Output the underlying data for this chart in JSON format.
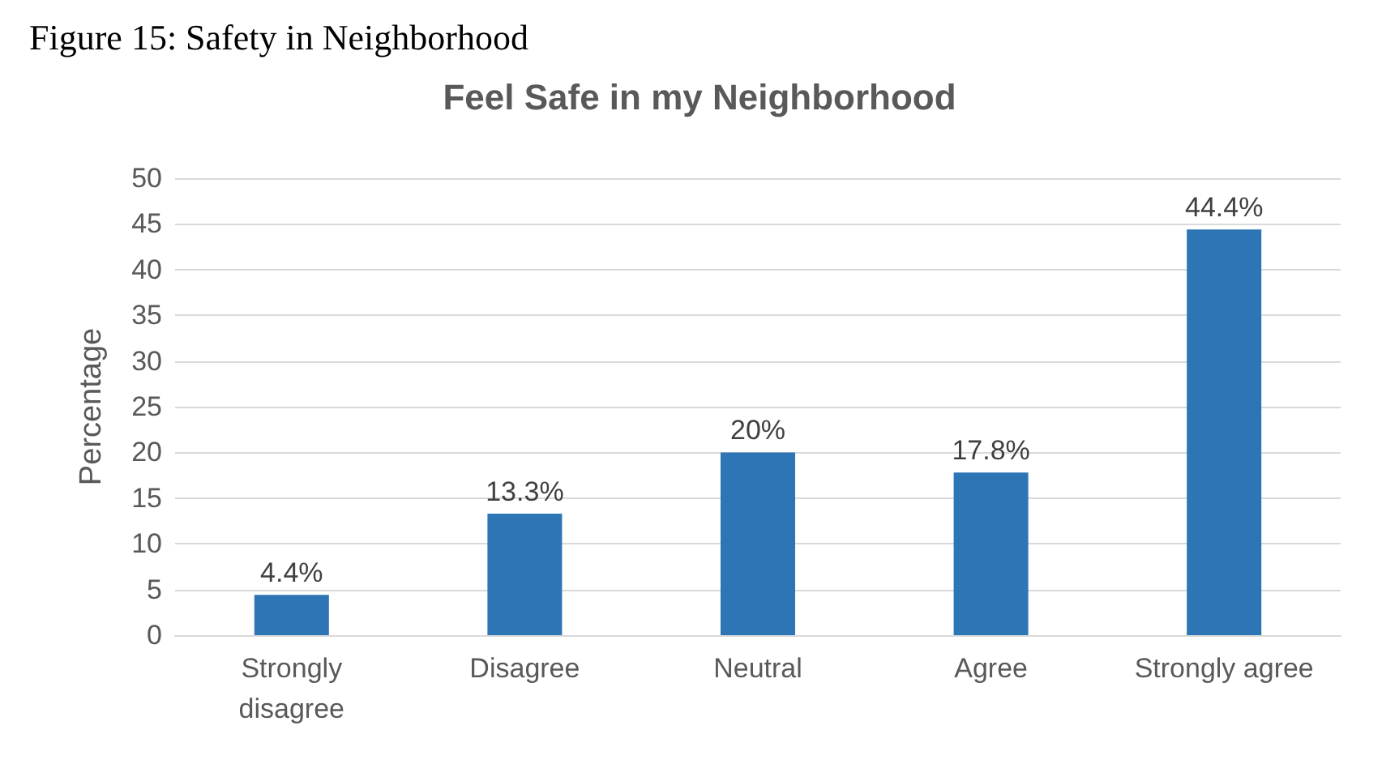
{
  "chart_data": {
    "type": "bar",
    "title": "Feel Safe in my Neighborhood",
    "ylabel": "Percentage",
    "annotations": [
      "Figure 15: Safety in Neighborhood"
    ],
    "categories": [
      "Strongly\ndisagree",
      "Disagree",
      "Neutral",
      "Agree",
      "Strongly agree"
    ],
    "values": [
      4.4,
      13.3,
      20,
      17.8,
      44.4
    ],
    "value_labels": [
      "4.4%",
      "13.3%",
      "20%",
      "17.8%",
      "44.4%"
    ],
    "color": "#2e75b6",
    "ylim": [
      0,
      50
    ],
    "yticks": [
      0,
      5,
      10,
      15,
      20,
      25,
      30,
      35,
      40,
      45,
      50
    ],
    "grid": "y"
  }
}
